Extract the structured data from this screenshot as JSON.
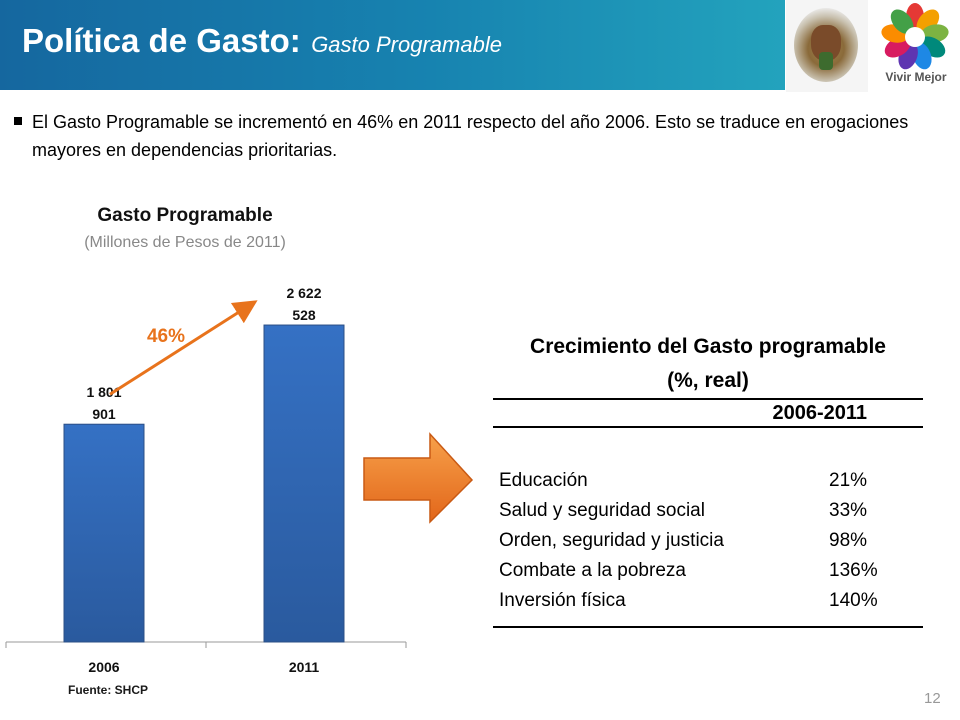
{
  "header": {
    "title": "Política de Gasto:",
    "subtitle": "Gasto Programable",
    "logo_text": "Vivir Mejor"
  },
  "bullet": {
    "text": "El Gasto Programable se incrementó en 46% en 2011 respecto del año 2006.  Esto se traduce en erogaciones mayores en dependencias prioritarias."
  },
  "chart_data": {
    "type": "bar",
    "title": "Gasto Programable",
    "subtitle": "(Millones de Pesos de 2011)",
    "categories": [
      "2006",
      "2011"
    ],
    "values": [
      1801901,
      2622528
    ],
    "data_labels": [
      [
        "1 801",
        "901"
      ],
      [
        "2 622",
        "528"
      ]
    ],
    "annotation": "46%",
    "bar_color": "#3571c4",
    "annotation_color": "#e8731c",
    "source": "Fuente: SHCP"
  },
  "table": {
    "title_line1": "Crecimiento del Gasto programable",
    "title_line2": "(%, real)",
    "period": "2006-2011",
    "rows": [
      {
        "label": "Educación",
        "value": "21%"
      },
      {
        "label": "Salud y seguridad social",
        "value": "33%"
      },
      {
        "label": "Orden, seguridad y justicia",
        "value": "98%"
      },
      {
        "label": "Combate a la pobreza",
        "value": "136%"
      },
      {
        "label": "Inversión física",
        "value": "140%"
      }
    ]
  },
  "page_number": "12"
}
